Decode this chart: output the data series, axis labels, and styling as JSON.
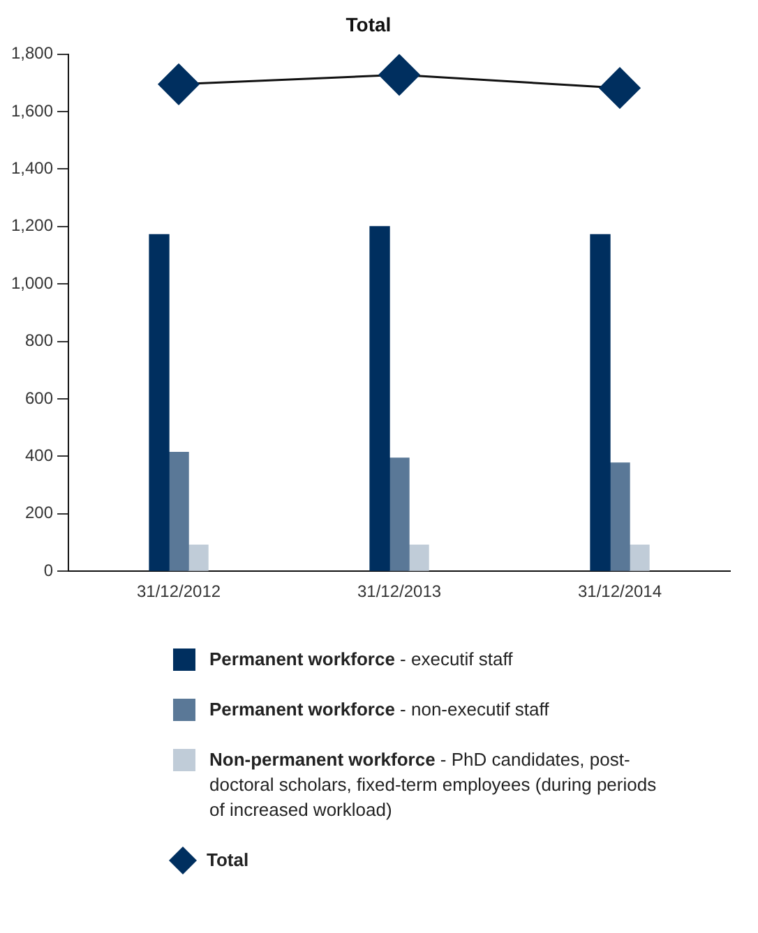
{
  "chart_data": {
    "type": "bar",
    "title": "Total",
    "categories": [
      "31/12/2012",
      "31/12/2013",
      "31/12/2014"
    ],
    "series": [
      {
        "name": "Permanent workforce - executif staff",
        "color": "#002f5f",
        "values": [
          1172,
          1200,
          1172
        ]
      },
      {
        "name": "Permanent workforce - non-executif staff",
        "color": "#5a7897",
        "values": [
          414,
          394,
          377
        ]
      },
      {
        "name": "Non-permanent workforce - PhD candidates, post-doctoral scholars, fixed-term employees (during periods of increased workload)",
        "color": "#c0ccd8",
        "values": [
          91,
          91,
          91
        ]
      },
      {
        "name": "Total",
        "type": "line",
        "color": "#002f5f",
        "marker": "diamond",
        "values": [
          1695,
          1728,
          1682
        ]
      }
    ],
    "ylim": [
      0,
      1800
    ],
    "yticks": [
      0,
      200,
      400,
      600,
      800,
      {
        "value": 1000,
        "label": "1,000"
      },
      {
        "value": 1200,
        "label": "1,200"
      },
      {
        "value": 1400,
        "label": "1,400"
      },
      {
        "value": 1600,
        "label": "1,600"
      },
      {
        "value": 1800,
        "label": "1,800"
      }
    ],
    "grid": false,
    "legend": "bottom"
  }
}
